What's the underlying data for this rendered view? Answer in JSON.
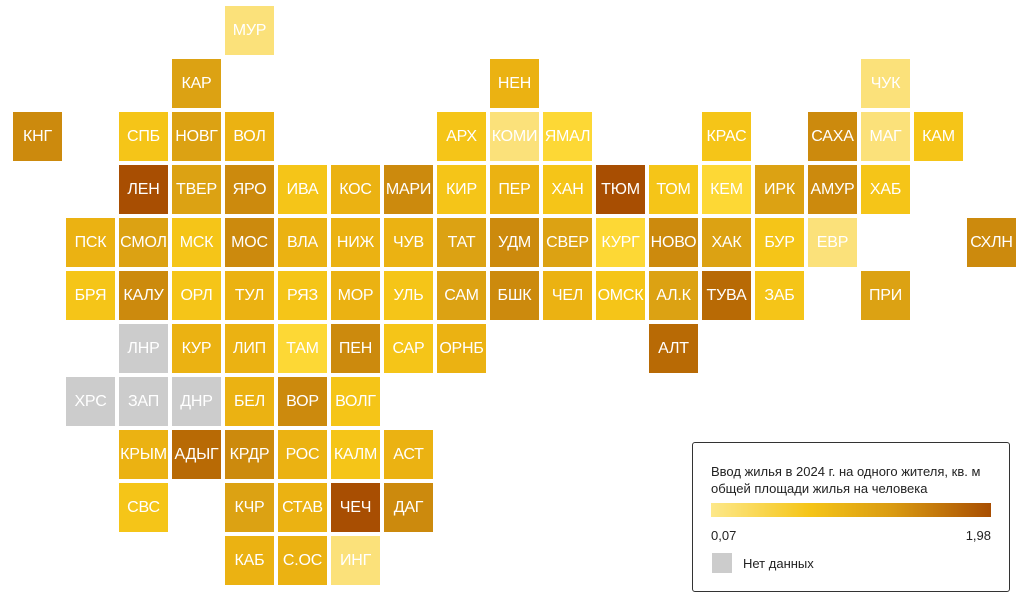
{
  "colors": {
    "c1": "#fbe17a",
    "c2": "#fdd835",
    "c3": "#f5c518",
    "c4": "#ebb212",
    "c5": "#dca213",
    "c6": "#cc8a0d",
    "c7": "#b86a05",
    "c8": "#a84e02",
    "nodata": "#cccccc"
  },
  "tiles": [
    {
      "label": "МУР",
      "row": 0,
      "col": 4,
      "color": "c1"
    },
    {
      "label": "КАР",
      "row": 1,
      "col": 3,
      "color": "c5"
    },
    {
      "label": "НЕН",
      "row": 1,
      "col": 9,
      "color": "c4"
    },
    {
      "label": "ЧУК",
      "row": 1,
      "col": 16,
      "color": "c1"
    },
    {
      "label": "КНГ",
      "row": 2,
      "col": 0,
      "color": "c6"
    },
    {
      "label": "СПБ",
      "row": 2,
      "col": 2,
      "color": "c3"
    },
    {
      "label": "НОВГ",
      "row": 2,
      "col": 3,
      "color": "c5"
    },
    {
      "label": "ВОЛ",
      "row": 2,
      "col": 4,
      "color": "c4"
    },
    {
      "label": "АРХ",
      "row": 2,
      "col": 8,
      "color": "c3"
    },
    {
      "label": "КОМИ",
      "row": 2,
      "col": 9,
      "color": "c1"
    },
    {
      "label": "ЯМАЛ",
      "row": 2,
      "col": 10,
      "color": "c2"
    },
    {
      "label": "КРАС",
      "row": 2,
      "col": 13,
      "color": "c3"
    },
    {
      "label": "САХА",
      "row": 2,
      "col": 15,
      "color": "c6"
    },
    {
      "label": "МАГ",
      "row": 2,
      "col": 16,
      "color": "c1"
    },
    {
      "label": "КАМ",
      "row": 2,
      "col": 17,
      "color": "c3"
    },
    {
      "label": "ЛЕН",
      "row": 3,
      "col": 2,
      "color": "c8"
    },
    {
      "label": "ТВЕР",
      "row": 3,
      "col": 3,
      "color": "c5"
    },
    {
      "label": "ЯРО",
      "row": 3,
      "col": 4,
      "color": "c6"
    },
    {
      "label": "ИВА",
      "row": 3,
      "col": 5,
      "color": "c3"
    },
    {
      "label": "КОС",
      "row": 3,
      "col": 6,
      "color": "c4"
    },
    {
      "label": "МАРИ",
      "row": 3,
      "col": 7,
      "color": "c6"
    },
    {
      "label": "КИР",
      "row": 3,
      "col": 8,
      "color": "c3"
    },
    {
      "label": "ПЕР",
      "row": 3,
      "col": 9,
      "color": "c4"
    },
    {
      "label": "ХАН",
      "row": 3,
      "col": 10,
      "color": "c3"
    },
    {
      "label": "ТЮМ",
      "row": 3,
      "col": 11,
      "color": "c8"
    },
    {
      "label": "ТОМ",
      "row": 3,
      "col": 12,
      "color": "c3"
    },
    {
      "label": "КЕМ",
      "row": 3,
      "col": 13,
      "color": "c2"
    },
    {
      "label": "ИРК",
      "row": 3,
      "col": 14,
      "color": "c5"
    },
    {
      "label": "АМУР",
      "row": 3,
      "col": 15,
      "color": "c6"
    },
    {
      "label": "ХАБ",
      "row": 3,
      "col": 16,
      "color": "c3"
    },
    {
      "label": "ПСК",
      "row": 4,
      "col": 1,
      "color": "c4"
    },
    {
      "label": "СМОЛ",
      "row": 4,
      "col": 2,
      "color": "c5"
    },
    {
      "label": "МСК",
      "row": 4,
      "col": 3,
      "color": "c3"
    },
    {
      "label": "МОС",
      "row": 4,
      "col": 4,
      "color": "c6"
    },
    {
      "label": "ВЛА",
      "row": 4,
      "col": 5,
      "color": "c4"
    },
    {
      "label": "НИЖ",
      "row": 4,
      "col": 6,
      "color": "c4"
    },
    {
      "label": "ЧУВ",
      "row": 4,
      "col": 7,
      "color": "c4"
    },
    {
      "label": "ТАТ",
      "row": 4,
      "col": 8,
      "color": "c5"
    },
    {
      "label": "УДМ",
      "row": 4,
      "col": 9,
      "color": "c6"
    },
    {
      "label": "СВЕР",
      "row": 4,
      "col": 10,
      "color": "c5"
    },
    {
      "label": "КУРГ",
      "row": 4,
      "col": 11,
      "color": "c2"
    },
    {
      "label": "НОВО",
      "row": 4,
      "col": 12,
      "color": "c6"
    },
    {
      "label": "ХАК",
      "row": 4,
      "col": 13,
      "color": "c5"
    },
    {
      "label": "БУР",
      "row": 4,
      "col": 14,
      "color": "c3"
    },
    {
      "label": "ЕВР",
      "row": 4,
      "col": 15,
      "color": "c1"
    },
    {
      "label": "СХЛН",
      "row": 4,
      "col": 18,
      "color": "c6"
    },
    {
      "label": "БРЯ",
      "row": 5,
      "col": 1,
      "color": "c3"
    },
    {
      "label": "КАЛУ",
      "row": 5,
      "col": 2,
      "color": "c6"
    },
    {
      "label": "ОРЛ",
      "row": 5,
      "col": 3,
      "color": "c3"
    },
    {
      "label": "ТУЛ",
      "row": 5,
      "col": 4,
      "color": "c4"
    },
    {
      "label": "РЯЗ",
      "row": 5,
      "col": 5,
      "color": "c3"
    },
    {
      "label": "МОР",
      "row": 5,
      "col": 6,
      "color": "c4"
    },
    {
      "label": "УЛЬ",
      "row": 5,
      "col": 7,
      "color": "c3"
    },
    {
      "label": "САМ",
      "row": 5,
      "col": 8,
      "color": "c5"
    },
    {
      "label": "БШК",
      "row": 5,
      "col": 9,
      "color": "c6"
    },
    {
      "label": "ЧЕЛ",
      "row": 5,
      "col": 10,
      "color": "c4"
    },
    {
      "label": "ОМСК",
      "row": 5,
      "col": 11,
      "color": "c3"
    },
    {
      "label": "АЛ.К",
      "row": 5,
      "col": 12,
      "color": "c5"
    },
    {
      "label": "ТУВА",
      "row": 5,
      "col": 13,
      "color": "c7"
    },
    {
      "label": "ЗАБ",
      "row": 5,
      "col": 14,
      "color": "c3"
    },
    {
      "label": "ПРИ",
      "row": 5,
      "col": 16,
      "color": "c5"
    },
    {
      "label": "ЛНР",
      "row": 6,
      "col": 2,
      "color": "nodata"
    },
    {
      "label": "КУР",
      "row": 6,
      "col": 3,
      "color": "c4"
    },
    {
      "label": "ЛИП",
      "row": 6,
      "col": 4,
      "color": "c4"
    },
    {
      "label": "ТАМ",
      "row": 6,
      "col": 5,
      "color": "c2"
    },
    {
      "label": "ПЕН",
      "row": 6,
      "col": 6,
      "color": "c6"
    },
    {
      "label": "САР",
      "row": 6,
      "col": 7,
      "color": "c3"
    },
    {
      "label": "ОРНБ",
      "row": 6,
      "col": 8,
      "color": "c4"
    },
    {
      "label": "АЛТ",
      "row": 6,
      "col": 12,
      "color": "c7"
    },
    {
      "label": "ХРС",
      "row": 7,
      "col": 1,
      "color": "nodata"
    },
    {
      "label": "ЗАП",
      "row": 7,
      "col": 2,
      "color": "nodata"
    },
    {
      "label": "ДНР",
      "row": 7,
      "col": 3,
      "color": "nodata"
    },
    {
      "label": "БЕЛ",
      "row": 7,
      "col": 4,
      "color": "c4"
    },
    {
      "label": "ВОР",
      "row": 7,
      "col": 5,
      "color": "c6"
    },
    {
      "label": "ВОЛГ",
      "row": 7,
      "col": 6,
      "color": "c3"
    },
    {
      "label": "КРЫМ",
      "row": 8,
      "col": 2,
      "color": "c4"
    },
    {
      "label": "АДЫГ",
      "row": 8,
      "col": 3,
      "color": "c7"
    },
    {
      "label": "КРДР",
      "row": 8,
      "col": 4,
      "color": "c6"
    },
    {
      "label": "РОС",
      "row": 8,
      "col": 5,
      "color": "c4"
    },
    {
      "label": "КАЛМ",
      "row": 8,
      "col": 6,
      "color": "c3"
    },
    {
      "label": "АСТ",
      "row": 8,
      "col": 7,
      "color": "c4"
    },
    {
      "label": "СВС",
      "row": 9,
      "col": 2,
      "color": "c3"
    },
    {
      "label": "КЧР",
      "row": 9,
      "col": 4,
      "color": "c5"
    },
    {
      "label": "СТАВ",
      "row": 9,
      "col": 5,
      "color": "c4"
    },
    {
      "label": "ЧЕЧ",
      "row": 9,
      "col": 6,
      "color": "c8"
    },
    {
      "label": "ДАГ",
      "row": 9,
      "col": 7,
      "color": "c6"
    },
    {
      "label": "КАБ",
      "row": 10,
      "col": 4,
      "color": "c4"
    },
    {
      "label": "С.ОС",
      "row": 10,
      "col": 5,
      "color": "c4"
    },
    {
      "label": "ИНГ",
      "row": 10,
      "col": 6,
      "color": "c1"
    }
  ],
  "legend": {
    "title": "Ввод жилья в 2024 г. на одного жителя, кв. м общей площади жилья на человека",
    "min": "0,07",
    "max": "1,98",
    "nodata_label": "Нет данных"
  }
}
